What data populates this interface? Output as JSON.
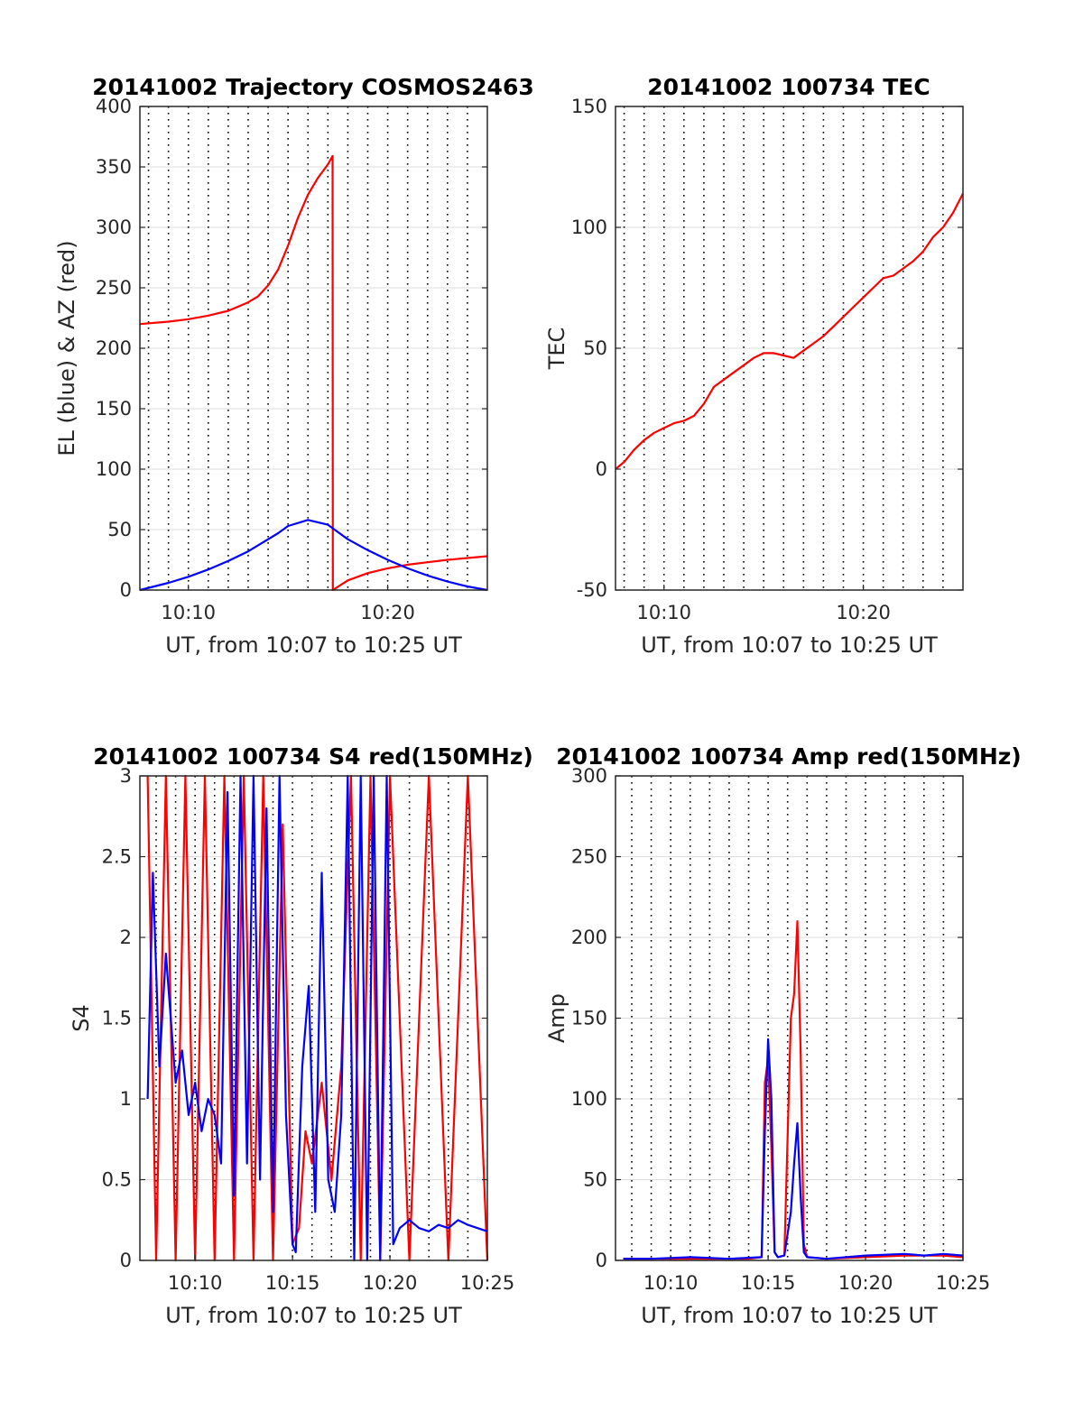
{
  "figure": {
    "background": "#ffffff",
    "axis_color": "#262626",
    "grid_h_color": "#dddddd",
    "grid_v_color": "#000000"
  },
  "chart_data": [
    {
      "type": "line",
      "title": "20141002 Trajectory COSMOS2463",
      "xlabel": "UT, from 10:07 to 10:25 UT",
      "ylabel": "EL (blue) & AZ (red)",
      "xlim": [
        "10:07:34",
        "10:25:00"
      ],
      "ylim": [
        0,
        400
      ],
      "yticks": [
        0,
        50,
        100,
        150,
        200,
        250,
        300,
        350,
        400
      ],
      "xticks": [
        "10:10",
        "10:20"
      ],
      "grid": {
        "y": "solid-light",
        "x": "dotted",
        "x_minor_step_minutes": 1
      },
      "series": [
        {
          "color": "#ff0000",
          "x": [
            "10:07:34",
            "10:09:00",
            "10:10:00",
            "10:11:00",
            "10:12:00",
            "10:13:00",
            "10:13:30",
            "10:14:00",
            "10:14:30",
            "10:15:00",
            "10:15:30",
            "10:16:00",
            "10:16:30",
            "10:17:00",
            "10:17:14",
            "10:17:15",
            "10:18:00",
            "10:19:00",
            "10:20:00",
            "10:21:00",
            "10:22:00",
            "10:23:00",
            "10:24:00",
            "10:25:00"
          ],
          "values": [
            220,
            222,
            224,
            227,
            231,
            238,
            243,
            252,
            265,
            285,
            308,
            327,
            341,
            352,
            359,
            0,
            8,
            14,
            18,
            21,
            23,
            25,
            26.5,
            28
          ]
        },
        {
          "color": "#0000ff",
          "x": [
            "10:07:34",
            "10:09:00",
            "10:10:00",
            "10:11:00",
            "10:12:00",
            "10:13:00",
            "10:14:00",
            "10:14:30",
            "10:15:00",
            "10:16:00",
            "10:17:00",
            "10:18:00",
            "10:19:00",
            "10:20:00",
            "10:21:00",
            "10:22:00",
            "10:23:00",
            "10:24:00",
            "10:25:00"
          ],
          "values": [
            0,
            6,
            11,
            17,
            24,
            32,
            42,
            47,
            53,
            58,
            54,
            42,
            33,
            25,
            18,
            12,
            7,
            3,
            0
          ]
        }
      ]
    },
    {
      "type": "line",
      "title": "20141002 100734 TEC",
      "xlabel": "UT, from 10:07 to 10:25 UT",
      "ylabel": "TEC",
      "xlim": [
        "10:07:34",
        "10:25:00"
      ],
      "ylim": [
        -50,
        150
      ],
      "yticks": [
        -50,
        0,
        50,
        100,
        150
      ],
      "xticks": [
        "10:10",
        "10:20"
      ],
      "grid": {
        "y": "solid-light",
        "x": "dotted",
        "x_minor_step_minutes": 1
      },
      "series": [
        {
          "color": "#ff0000",
          "x": [
            "10:07:34",
            "10:08:00",
            "10:08:30",
            "10:09:00",
            "10:09:30",
            "10:10:00",
            "10:10:30",
            "10:11:00",
            "10:11:30",
            "10:12:00",
            "10:12:30",
            "10:13:00",
            "10:13:30",
            "10:14:00",
            "10:14:30",
            "10:15:00",
            "10:15:30",
            "10:16:00",
            "10:16:30",
            "10:17:00",
            "10:17:30",
            "10:18:00",
            "10:18:30",
            "10:19:00",
            "10:19:30",
            "10:20:00",
            "10:20:30",
            "10:21:00",
            "10:21:30",
            "10:22:00",
            "10:22:30",
            "10:23:00",
            "10:23:30",
            "10:24:00",
            "10:24:30",
            "10:25:00"
          ],
          "values": [
            0,
            3,
            8,
            12,
            15,
            17,
            19,
            20,
            22,
            27,
            34,
            37,
            40,
            43,
            46,
            48,
            48,
            47,
            46,
            49,
            52,
            55,
            59,
            63,
            67,
            71,
            75,
            79,
            80,
            83,
            86,
            90,
            96,
            100,
            106,
            114
          ]
        }
      ]
    },
    {
      "type": "line",
      "title": "20141002 100734 S4 red(150MHz)",
      "xlabel": "UT, from 10:07 to 10:25 UT",
      "ylabel": "S4",
      "xlim": [
        "10:07:10",
        "10:25:00"
      ],
      "ylim": [
        0,
        3
      ],
      "yticks": [
        0,
        0.5,
        1,
        1.5,
        2,
        2.5,
        3
      ],
      "xticks": [
        "10:10",
        "10:15",
        "10:20",
        "10:25"
      ],
      "grid": {
        "y": "solid-light",
        "x": "dotted",
        "x_minor_step_minutes": 1
      },
      "series": [
        {
          "color": "#ff0000",
          "x": [
            "10:07:34",
            "10:08:00",
            "10:08:30",
            "10:09:00",
            "10:09:30",
            "10:10:00",
            "10:10:30",
            "10:11:00",
            "10:11:30",
            "10:12:00",
            "10:12:30",
            "10:13:00",
            "10:13:30",
            "10:14:00",
            "10:14:30",
            "10:15:00",
            "10:15:20",
            "10:15:40",
            "10:16:00",
            "10:16:30",
            "10:17:00",
            "10:17:30",
            "10:18:00",
            "10:18:30",
            "10:19:00",
            "10:19:30",
            "10:20:00",
            "10:21:00",
            "10:22:00",
            "10:23:00",
            "10:24:00",
            "10:25:00"
          ],
          "values": [
            3,
            0,
            3,
            0,
            3,
            0,
            3,
            0,
            3,
            0,
            3,
            0,
            3,
            0,
            2.7,
            0.1,
            0.2,
            0.8,
            0.6,
            1.1,
            0.5,
            1.2,
            3,
            0,
            3,
            0,
            3,
            0,
            3,
            0,
            3,
            0
          ]
        },
        {
          "color": "#0000ff",
          "x": [
            "10:07:34",
            "10:07:50",
            "10:08:10",
            "10:08:30",
            "10:09:00",
            "10:09:20",
            "10:09:40",
            "10:10:00",
            "10:10:20",
            "10:10:40",
            "10:11:00",
            "10:11:20",
            "10:11:40",
            "10:12:00",
            "10:12:20",
            "10:12:40",
            "10:13:00",
            "10:13:20",
            "10:13:40",
            "10:14:00",
            "10:14:20",
            "10:14:40",
            "10:15:00",
            "10:15:10",
            "10:15:30",
            "10:15:50",
            "10:16:10",
            "10:16:30",
            "10:16:50",
            "10:17:10",
            "10:17:30",
            "10:17:50",
            "10:18:10",
            "10:18:30",
            "10:18:50",
            "10:19:10",
            "10:19:30",
            "10:19:50",
            "10:20:10",
            "10:20:30",
            "10:21:00",
            "10:21:30",
            "10:22:00",
            "10:22:30",
            "10:23:00",
            "10:23:30",
            "10:24:00",
            "10:24:30",
            "10:25:00"
          ],
          "values": [
            1.0,
            2.4,
            1.2,
            1.9,
            1.1,
            1.3,
            0.9,
            1.1,
            0.8,
            1.0,
            0.9,
            0.6,
            2.9,
            0.4,
            3.0,
            0.6,
            3.0,
            0.5,
            2.8,
            0.3,
            3.0,
            0.9,
            0.1,
            0.05,
            1.2,
            1.7,
            0.3,
            2.4,
            0.5,
            0.3,
            0.9,
            3.0,
            0.0,
            3.0,
            0.0,
            3.0,
            0.0,
            3.0,
            0.1,
            0.2,
            0.25,
            0.2,
            0.18,
            0.22,
            0.2,
            0.25,
            0.22,
            0.2,
            0.18
          ]
        }
      ]
    },
    {
      "type": "line",
      "title": "20141002 100734 Amp red(150MHz)",
      "xlabel": "UT, from 10:07 to 10:25 UT",
      "ylabel": "Amp",
      "xlim": [
        "10:07:10",
        "10:25:00"
      ],
      "ylim": [
        0,
        300
      ],
      "yticks": [
        0,
        50,
        100,
        150,
        200,
        250,
        300
      ],
      "xticks": [
        "10:10",
        "10:15",
        "10:20",
        "10:25"
      ],
      "grid": {
        "y": "solid-light",
        "x": "dotted",
        "x_minor_step_minutes": 1
      },
      "series": [
        {
          "color": "#ff0000",
          "x": [
            "10:07:34",
            "10:10:00",
            "10:12:00",
            "10:14:00",
            "10:14:40",
            "10:14:50",
            "10:15:00",
            "10:15:10",
            "10:15:20",
            "10:15:30",
            "10:15:50",
            "10:16:10",
            "10:16:20",
            "10:16:30",
            "10:16:40",
            "10:16:50",
            "10:17:00",
            "10:18:00",
            "10:20:00",
            "10:22:00",
            "10:24:00",
            "10:25:00"
          ],
          "values": [
            1,
            1,
            1,
            1,
            2,
            110,
            125,
            70,
            5,
            2,
            3,
            150,
            165,
            210,
            130,
            10,
            2,
            1,
            2,
            3,
            3,
            2
          ]
        },
        {
          "color": "#0000ff",
          "x": [
            "10:07:34",
            "10:09:00",
            "10:11:00",
            "10:13:00",
            "10:14:40",
            "10:14:50",
            "10:15:00",
            "10:15:10",
            "10:15:20",
            "10:15:30",
            "10:15:50",
            "10:16:10",
            "10:16:20",
            "10:16:30",
            "10:16:40",
            "10:16:50",
            "10:17:00",
            "10:18:00",
            "10:20:00",
            "10:22:00",
            "10:23:00",
            "10:24:00",
            "10:25:00"
          ],
          "values": [
            1,
            1,
            2,
            1,
            2,
            80,
            137,
            100,
            5,
            2,
            3,
            30,
            60,
            85,
            40,
            5,
            2,
            1,
            3,
            4,
            3,
            4,
            3
          ]
        }
      ]
    }
  ]
}
